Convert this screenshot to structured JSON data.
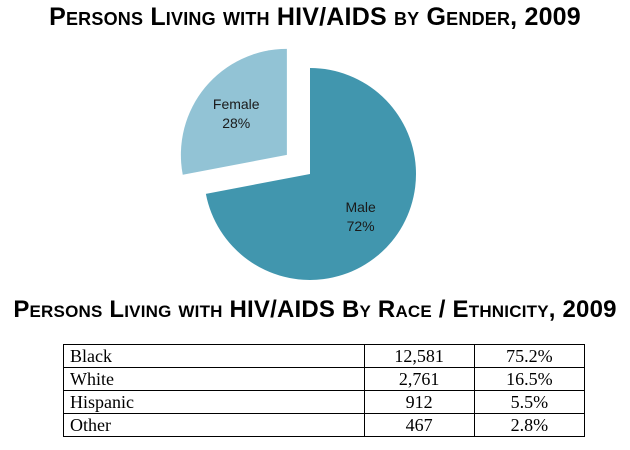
{
  "chart_data": [
    {
      "type": "pie",
      "title": "Persons Living with HIV/AIDS by Gender, 2009",
      "slices": [
        {
          "label": "Male",
          "value": 72,
          "value_label": "72%",
          "color": "#4196ae",
          "exploded": false
        },
        {
          "label": "Female",
          "value": 28,
          "value_label": "28%",
          "color": "#92c3d5",
          "exploded": true
        }
      ]
    },
    {
      "type": "table",
      "title": "Persons Living with HIV/AIDS By Race / Ethnicity, 2009",
      "rows": [
        {
          "category": "Black",
          "count": "12,581",
          "percent": "75.2%"
        },
        {
          "category": "White",
          "count": "2,761",
          "percent": "16.5%"
        },
        {
          "category": "Hispanic",
          "count": "912",
          "percent": "5.5%"
        },
        {
          "category": "Other",
          "count": "467",
          "percent": "2.8%"
        }
      ]
    }
  ]
}
